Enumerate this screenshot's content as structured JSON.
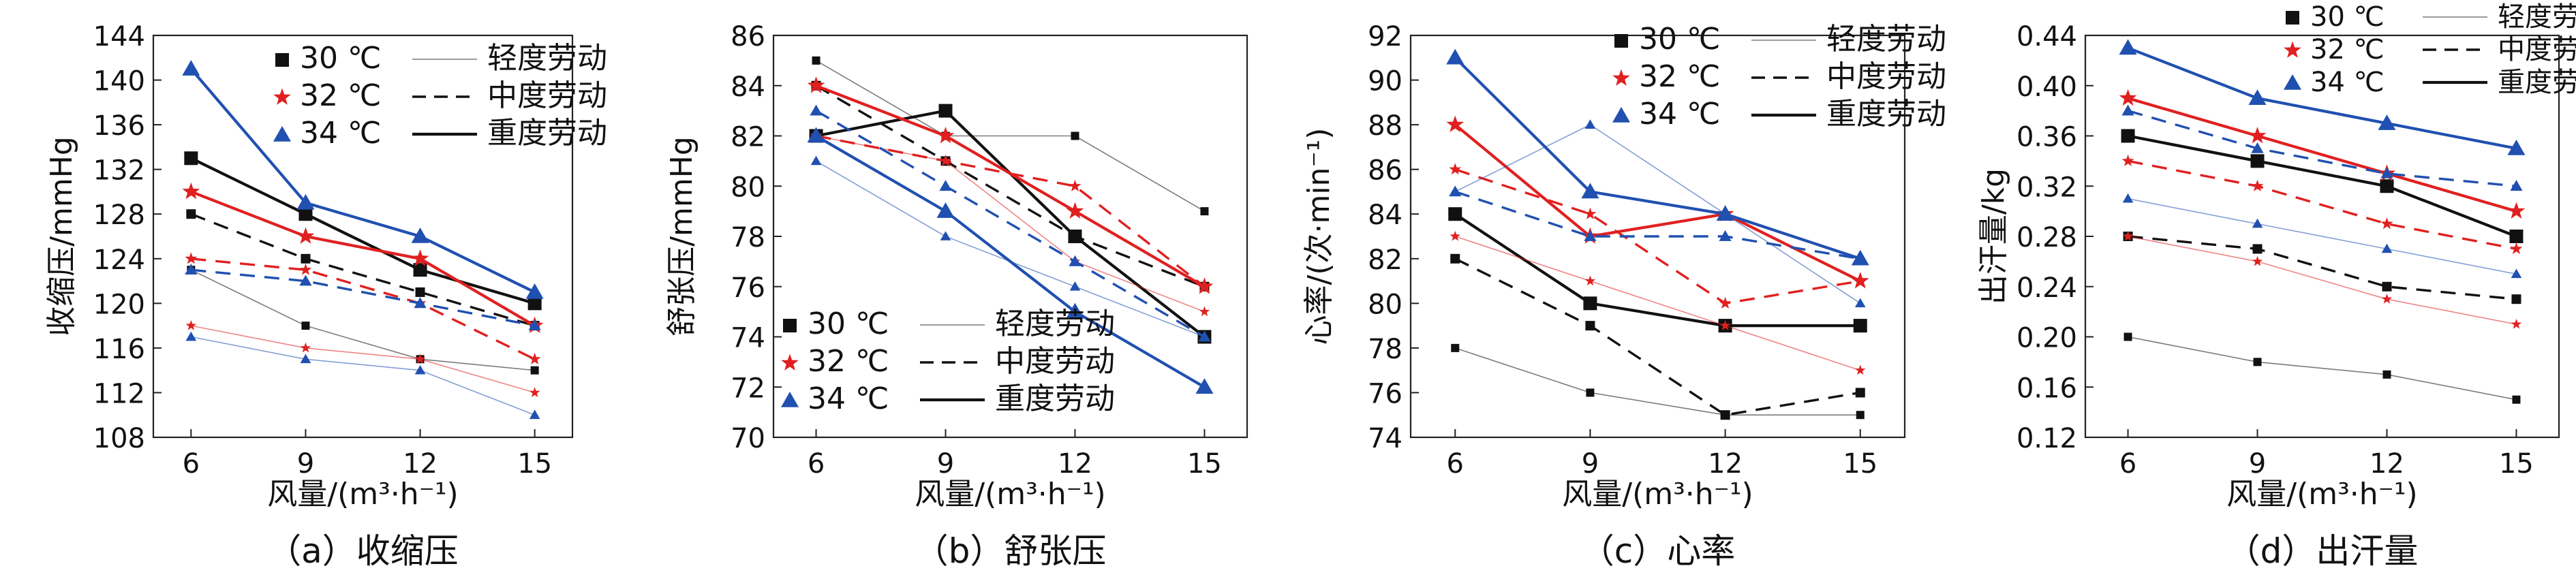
{
  "legend": {
    "temperatures": [
      "30 ℃",
      "32 ℃",
      "34 ℃"
    ],
    "labor": [
      "轻度劳动",
      "中度劳动",
      "重度劳动"
    ]
  },
  "colors": {
    "30": "#111111",
    "32": "#e02020",
    "34": "#2050b0"
  },
  "chart_data": [
    {
      "type": "line",
      "caption": "（a）收缩压",
      "xlabel": "风量/(m³·h⁻¹)",
      "ylabel": "收缩压/mmHg",
      "x": [
        6,
        9,
        12,
        15
      ],
      "ylim": [
        108,
        144
      ],
      "yticks": [
        "108",
        "112",
        "116",
        "120",
        "124",
        "128",
        "132",
        "136",
        "140",
        "144"
      ],
      "legend_position": "top-right",
      "series": [
        {
          "name": "30 ℃ 轻度劳动",
          "temp": "30",
          "labor": "light",
          "values": [
            123,
            118,
            115,
            114
          ]
        },
        {
          "name": "30 ℃ 中度劳动",
          "temp": "30",
          "labor": "moderate",
          "values": [
            128,
            124,
            121,
            118
          ]
        },
        {
          "name": "30 ℃ 重度劳动",
          "temp": "30",
          "labor": "heavy",
          "values": [
            133,
            128,
            123,
            120
          ]
        },
        {
          "name": "32 ℃ 轻度劳动",
          "temp": "32",
          "labor": "light",
          "values": [
            118,
            116,
            115,
            112
          ]
        },
        {
          "name": "32 ℃ 中度劳动",
          "temp": "32",
          "labor": "moderate",
          "values": [
            124,
            123,
            120,
            115
          ]
        },
        {
          "name": "32 ℃ 重度劳动",
          "temp": "32",
          "labor": "heavy",
          "values": [
            130,
            126,
            124,
            118
          ]
        },
        {
          "name": "34 ℃ 轻度劳动",
          "temp": "34",
          "labor": "light",
          "values": [
            117,
            115,
            114,
            110
          ]
        },
        {
          "name": "34 ℃ 中度劳动",
          "temp": "34",
          "labor": "moderate",
          "values": [
            123,
            122,
            120,
            118
          ]
        },
        {
          "name": "34 ℃ 重度劳动",
          "temp": "34",
          "labor": "heavy",
          "values": [
            141,
            129,
            126,
            121
          ]
        }
      ]
    },
    {
      "type": "line",
      "caption": "（b）舒张压",
      "xlabel": "风量/(m³·h⁻¹)",
      "ylabel": "舒张压/mmHg",
      "x": [
        6,
        9,
        12,
        15
      ],
      "ylim": [
        70,
        86
      ],
      "yticks": [
        "70",
        "72",
        "74",
        "76",
        "78",
        "80",
        "82",
        "84",
        "86"
      ],
      "legend_position": "bottom-right",
      "series": [
        {
          "name": "30 ℃ 轻度劳动",
          "temp": "30",
          "labor": "light",
          "values": [
            85,
            82,
            82,
            79
          ]
        },
        {
          "name": "30 ℃ 中度劳动",
          "temp": "30",
          "labor": "moderate",
          "values": [
            84,
            81,
            78,
            76
          ]
        },
        {
          "name": "30 ℃ 重度劳动",
          "temp": "30",
          "labor": "heavy",
          "values": [
            82,
            83,
            78,
            74
          ]
        },
        {
          "name": "32 ℃ 轻度劳动",
          "temp": "32",
          "labor": "light",
          "values": [
            82,
            81,
            77,
            75
          ]
        },
        {
          "name": "32 ℃ 中度劳动",
          "temp": "32",
          "labor": "moderate",
          "values": [
            82,
            81,
            80,
            76
          ]
        },
        {
          "name": "32 ℃ 重度劳动",
          "temp": "32",
          "labor": "heavy",
          "values": [
            84,
            82,
            79,
            76
          ]
        },
        {
          "name": "34 ℃ 轻度劳动",
          "temp": "34",
          "labor": "light",
          "values": [
            81,
            78,
            76,
            74
          ]
        },
        {
          "name": "34 ℃ 中度劳动",
          "temp": "34",
          "labor": "moderate",
          "values": [
            83,
            80,
            77,
            74
          ]
        },
        {
          "name": "34 ℃ 重度劳动",
          "temp": "34",
          "labor": "heavy",
          "values": [
            82,
            79,
            75,
            72
          ]
        }
      ]
    },
    {
      "type": "line",
      "caption": "（c）心率",
      "xlabel": "风量/(m³·h⁻¹)",
      "ylabel": "心率/(次·min⁻¹)",
      "x": [
        6,
        9,
        12,
        15
      ],
      "ylim": [
        74,
        92
      ],
      "yticks": [
        "74",
        "76",
        "78",
        "80",
        "82",
        "84",
        "86",
        "88",
        "90",
        "92"
      ],
      "legend_position": "top-right",
      "series": [
        {
          "name": "30 ℃ 轻度劳动",
          "temp": "30",
          "labor": "light",
          "values": [
            78,
            76,
            75,
            75
          ]
        },
        {
          "name": "30 ℃ 中度劳动",
          "temp": "30",
          "labor": "moderate",
          "values": [
            82,
            79,
            75,
            76
          ]
        },
        {
          "name": "30 ℃ 重度劳动",
          "temp": "30",
          "labor": "heavy",
          "values": [
            84,
            80,
            79,
            79
          ]
        },
        {
          "name": "32 ℃ 轻度劳动",
          "temp": "32",
          "labor": "light",
          "values": [
            83,
            81,
            79,
            77
          ]
        },
        {
          "name": "32 ℃ 中度劳动",
          "temp": "32",
          "labor": "moderate",
          "values": [
            86,
            84,
            80,
            81
          ]
        },
        {
          "name": "32 ℃ 重度劳动",
          "temp": "32",
          "labor": "heavy",
          "values": [
            88,
            83,
            84,
            81
          ]
        },
        {
          "name": "34 ℃ 轻度劳动",
          "temp": "34",
          "labor": "light",
          "values": [
            85,
            88,
            84,
            80
          ]
        },
        {
          "name": "34 ℃ 中度劳动",
          "temp": "34",
          "labor": "moderate",
          "values": [
            85,
            83,
            83,
            82
          ]
        },
        {
          "name": "34 ℃ 重度劳动",
          "temp": "34",
          "labor": "heavy",
          "values": [
            91,
            85,
            84,
            82
          ]
        }
      ]
    },
    {
      "type": "line",
      "caption": "（d）出汗量",
      "xlabel": "风量/(m³·h⁻¹)",
      "ylabel": "出汗量/kg",
      "x": [
        6,
        9,
        12,
        15
      ],
      "ylim": [
        0.12,
        0.44
      ],
      "yticks": [
        "0.12",
        "0.16",
        "0.20",
        "0.24",
        "0.28",
        "0.32",
        "0.36",
        "0.40",
        "0.44"
      ],
      "legend_position": "top-right",
      "series": [
        {
          "name": "30 ℃ 轻度劳动",
          "temp": "30",
          "labor": "light",
          "values": [
            0.2,
            0.18,
            0.17,
            0.15
          ]
        },
        {
          "name": "30 ℃ 中度劳动",
          "temp": "30",
          "labor": "moderate",
          "values": [
            0.28,
            0.27,
            0.24,
            0.23
          ]
        },
        {
          "name": "30 ℃ 重度劳动",
          "temp": "30",
          "labor": "heavy",
          "values": [
            0.36,
            0.34,
            0.32,
            0.28
          ]
        },
        {
          "name": "32 ℃ 轻度劳动",
          "temp": "32",
          "labor": "light",
          "values": [
            0.28,
            0.26,
            0.23,
            0.21
          ]
        },
        {
          "name": "32 ℃ 中度劳动",
          "temp": "32",
          "labor": "moderate",
          "values": [
            0.34,
            0.32,
            0.29,
            0.27
          ]
        },
        {
          "name": "32 ℃ 重度劳动",
          "temp": "32",
          "labor": "heavy",
          "values": [
            0.39,
            0.36,
            0.33,
            0.3
          ]
        },
        {
          "name": "34 ℃ 轻度劳动",
          "temp": "34",
          "labor": "light",
          "values": [
            0.31,
            0.29,
            0.27,
            0.25
          ]
        },
        {
          "name": "34 ℃ 中度劳动",
          "temp": "34",
          "labor": "moderate",
          "values": [
            0.38,
            0.35,
            0.33,
            0.32
          ]
        },
        {
          "name": "34 ℃ 重度劳动",
          "temp": "34",
          "labor": "heavy",
          "values": [
            0.43,
            0.39,
            0.37,
            0.35
          ]
        }
      ]
    }
  ]
}
